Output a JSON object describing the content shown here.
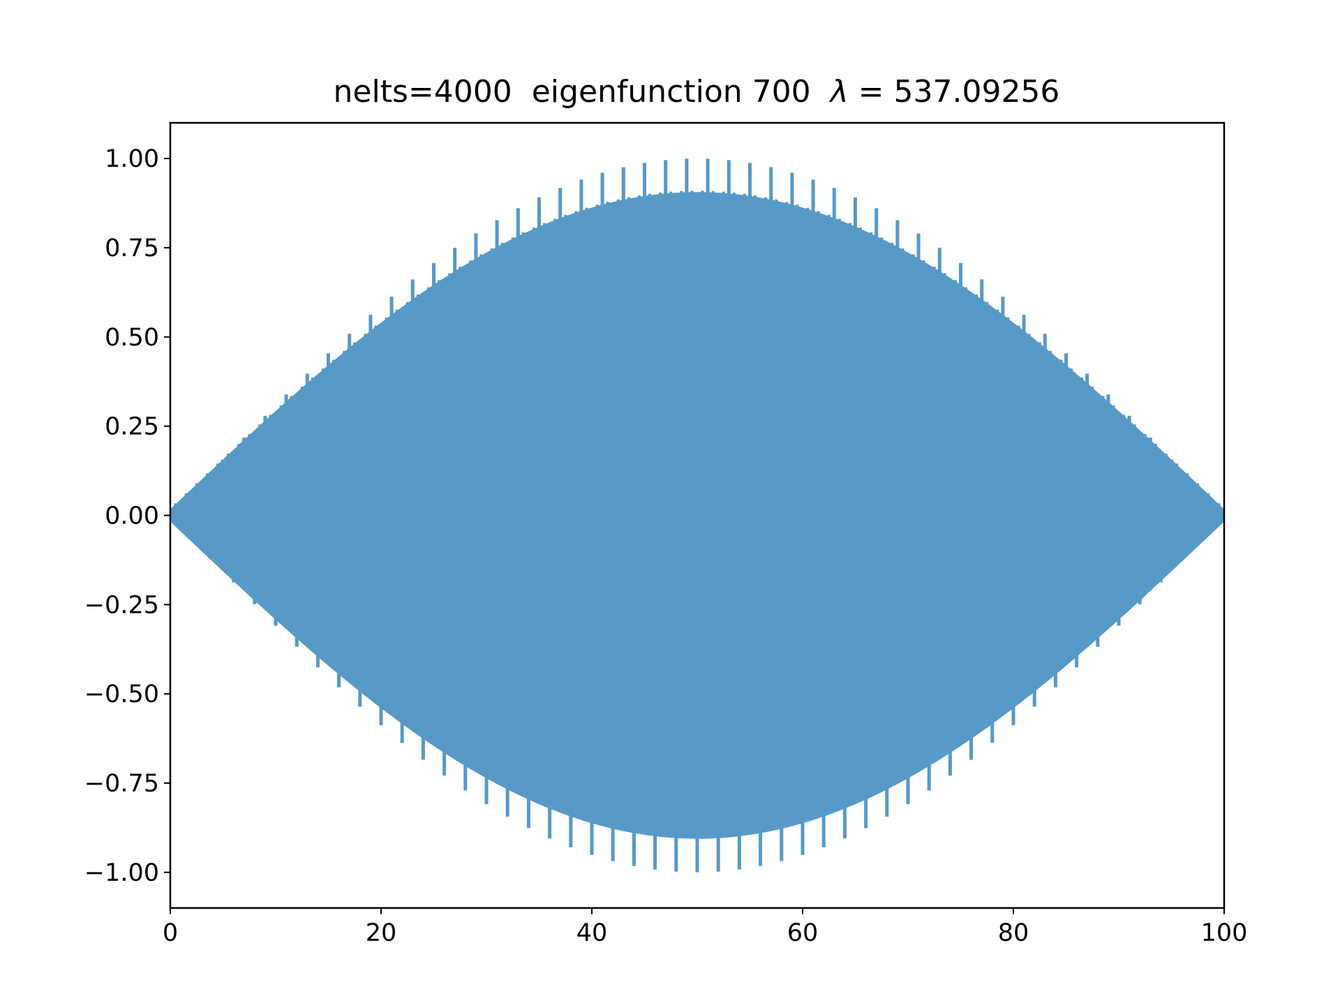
{
  "chart_data": {
    "type": "line",
    "title": "nelts=4000  eigenfunction 700  λ = 537.09256",
    "title_parts": {
      "prefix": "nelts=4000  eigenfunction 700  ",
      "lambda_symbol": "λ",
      "equals": " = ",
      "value": "537.09256"
    },
    "xlabel": "",
    "ylabel": "",
    "xlim": [
      0,
      100
    ],
    "ylim": [
      -1.1,
      1.1
    ],
    "xticks": [
      0,
      20,
      40,
      60,
      80,
      100
    ],
    "xtick_labels": [
      "0",
      "20",
      "40",
      "60",
      "80",
      "100"
    ],
    "yticks": [
      -1.0,
      -0.75,
      -0.5,
      -0.25,
      0.0,
      0.25,
      0.5,
      0.75,
      1.0
    ],
    "ytick_labels": [
      "−1.00",
      "−0.75",
      "−0.50",
      "−0.25",
      "0.00",
      "0.25",
      "0.50",
      "0.75",
      "1.00"
    ],
    "grid": false,
    "legend": "none",
    "series": [
      {
        "color": "#5799c7",
        "nelts": 4000,
        "envelope": "sin(pi*x/100)",
        "body_amplitude": 0.89,
        "spike_amplitude": 1.0,
        "spike_spacing": 2.0,
        "spike_offset": 1.0,
        "peak_x": 50,
        "peak_value": 1.0,
        "min_value": -1.0
      }
    ]
  }
}
